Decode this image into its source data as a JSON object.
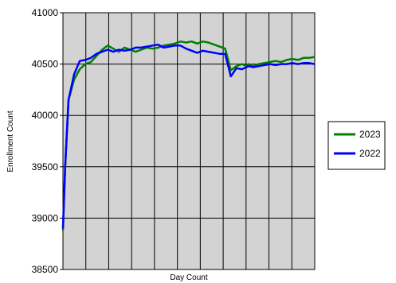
{
  "chart_data": {
    "type": "line",
    "title": "",
    "xlabel": "Day Count",
    "ylabel": "Enrollment Count",
    "ylim": [
      38500,
      41000
    ],
    "yticks": [
      38500,
      39000,
      39500,
      40000,
      40500,
      41000
    ],
    "ytick_labels": [
      "38500",
      "39000",
      "39500",
      "40000",
      "40500",
      "41000"
    ],
    "xlim": [
      0,
      225
    ],
    "grid": true,
    "legend_position": "right",
    "colors": {
      "plot_background": "#d3d3d3",
      "grid": "#000000",
      "2023": "#008000",
      "2022": "#0000ff"
    },
    "x": [
      0,
      2,
      5,
      10,
      15,
      20,
      25,
      30,
      35,
      40,
      45,
      50,
      55,
      60,
      65,
      70,
      75,
      80,
      85,
      90,
      95,
      100,
      105,
      110,
      115,
      120,
      125,
      130,
      135,
      140,
      145,
      150,
      155,
      160,
      162,
      164,
      166,
      170,
      175,
      180,
      185,
      190,
      195,
      200,
      205,
      210,
      215,
      220,
      225
    ],
    "series": [
      {
        "name": "2023",
        "values": [
          38880,
          39500,
          40150,
          40350,
          40450,
          40500,
          40520,
          40580,
          40640,
          40680,
          40650,
          40620,
          40660,
          40640,
          40620,
          40640,
          40660,
          40650,
          40660,
          40680,
          40690,
          40700,
          40720,
          40710,
          40720,
          40700,
          40720,
          40710,
          40690,
          40670,
          40650,
          40440,
          40480,
          40500,
          40490,
          40480,
          40500,
          40480,
          40500,
          40510,
          40520,
          40530,
          40520,
          40540,
          40550,
          40540,
          40560,
          40560,
          40570
        ]
      },
      {
        "name": "2022",
        "values": [
          38900,
          39500,
          40150,
          40400,
          40530,
          40540,
          40560,
          40600,
          40620,
          40640,
          40620,
          40640,
          40630,
          40640,
          40660,
          40660,
          40670,
          40680,
          40690,
          40660,
          40670,
          40680,
          40680,
          40650,
          40630,
          40610,
          40630,
          40620,
          40610,
          40600,
          40600,
          40380,
          40460,
          40450,
          40460,
          40470,
          40480,
          40470,
          40480,
          40490,
          40500,
          40490,
          40500,
          40500,
          40510,
          40500,
          40510,
          40510,
          40500
        ]
      }
    ]
  }
}
